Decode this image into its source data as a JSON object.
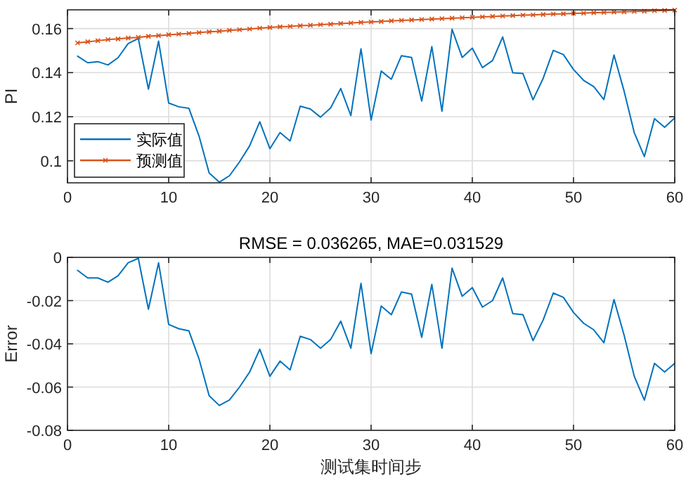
{
  "chart_data": [
    {
      "type": "line",
      "ylabel": "PI",
      "x": [
        1,
        2,
        3,
        4,
        5,
        6,
        7,
        8,
        9,
        10,
        11,
        12,
        13,
        14,
        15,
        16,
        17,
        18,
        19,
        20,
        21,
        22,
        23,
        24,
        25,
        26,
        27,
        28,
        29,
        30,
        31,
        32,
        33,
        34,
        35,
        36,
        37,
        38,
        39,
        40,
        41,
        42,
        43,
        44,
        45,
        46,
        47,
        48,
        49,
        50,
        51,
        52,
        53,
        54,
        55,
        56,
        57,
        58,
        59,
        60
      ],
      "series": [
        {
          "name": "实际值",
          "color": "#0072bd",
          "marker": "none",
          "values": [
            0.1475,
            0.1445,
            0.145,
            0.1435,
            0.1468,
            0.1532,
            0.1555,
            0.1325,
            0.1543,
            0.1262,
            0.1245,
            0.1238,
            0.1112,
            0.0945,
            0.0903,
            0.0932,
            0.0995,
            0.1068,
            0.1177,
            0.1055,
            0.1128,
            0.109,
            0.1248,
            0.1235,
            0.1198,
            0.124,
            0.1328,
            0.1205,
            0.1508,
            0.1185,
            0.1407,
            0.137,
            0.1477,
            0.1469,
            0.1271,
            0.1518,
            0.1225,
            0.1597,
            0.1469,
            0.1511,
            0.1423,
            0.1455,
            0.1562,
            0.1399,
            0.1396,
            0.1277,
            0.1374,
            0.1501,
            0.1482,
            0.1414,
            0.1365,
            0.1337,
            0.1278,
            0.148,
            0.1316,
            0.1128,
            0.1019,
            0.1191,
            0.1152,
            0.1194
          ]
        },
        {
          "name": "预测值",
          "color": "#d95319",
          "marker": "cross",
          "values": [
            0.1535,
            0.154,
            0.1545,
            0.155,
            0.1553,
            0.1557,
            0.156,
            0.1565,
            0.1568,
            0.1572,
            0.1575,
            0.1578,
            0.1582,
            0.1585,
            0.1588,
            0.1592,
            0.1595,
            0.1598,
            0.1602,
            0.1605,
            0.1608,
            0.161,
            0.1613,
            0.1615,
            0.1618,
            0.162,
            0.1623,
            0.1625,
            0.1628,
            0.163,
            0.1632,
            0.1635,
            0.1637,
            0.1639,
            0.1641,
            0.1643,
            0.1645,
            0.1647,
            0.1649,
            0.1651,
            0.1653,
            0.1655,
            0.1657,
            0.1659,
            0.1661,
            0.1662,
            0.1664,
            0.1666,
            0.1667,
            0.1669,
            0.167,
            0.1672,
            0.1673,
            0.1675,
            0.1676,
            0.1678,
            0.1679,
            0.1681,
            0.1682,
            0.1684
          ]
        }
      ],
      "xlim": [
        0,
        60
      ],
      "xticks": [
        0,
        10,
        20,
        30,
        40,
        50,
        60
      ],
      "ylim": [
        0.09,
        0.1685
      ],
      "yticks": [
        0.1,
        0.12,
        0.14,
        0.16
      ],
      "grid": true,
      "legend": "bottom left"
    },
    {
      "type": "line",
      "title": "RMSE = 0.036265, MAE=0.031529",
      "xlabel": "测试集时间步",
      "ylabel": "Error",
      "x": [
        1,
        2,
        3,
        4,
        5,
        6,
        7,
        8,
        9,
        10,
        11,
        12,
        13,
        14,
        15,
        16,
        17,
        18,
        19,
        20,
        21,
        22,
        23,
        24,
        25,
        26,
        27,
        28,
        29,
        30,
        31,
        32,
        33,
        34,
        35,
        36,
        37,
        38,
        39,
        40,
        41,
        42,
        43,
        44,
        45,
        46,
        47,
        48,
        49,
        50,
        51,
        52,
        53,
        54,
        55,
        56,
        57,
        58,
        59,
        60
      ],
      "series": [
        {
          "color": "#0072bd",
          "values": [
            -0.006,
            -0.0095,
            -0.0095,
            -0.0115,
            -0.0085,
            -0.0025,
            -0.0005,
            -0.024,
            -0.0025,
            -0.031,
            -0.033,
            -0.034,
            -0.047,
            -0.064,
            -0.0685,
            -0.066,
            -0.06,
            -0.053,
            -0.0425,
            -0.055,
            -0.048,
            -0.052,
            -0.0365,
            -0.038,
            -0.042,
            -0.038,
            -0.0295,
            -0.042,
            -0.012,
            -0.0445,
            -0.0225,
            -0.0265,
            -0.016,
            -0.017,
            -0.037,
            -0.0125,
            -0.042,
            -0.005,
            -0.018,
            -0.014,
            -0.023,
            -0.02,
            -0.0095,
            -0.026,
            -0.0265,
            -0.0385,
            -0.029,
            -0.0165,
            -0.0185,
            -0.0255,
            -0.0305,
            -0.0335,
            -0.0395,
            -0.0195,
            -0.036,
            -0.055,
            -0.066,
            -0.049,
            -0.053,
            -0.049
          ]
        }
      ],
      "xlim": [
        0,
        60
      ],
      "xticks": [
        0,
        10,
        20,
        30,
        40,
        50,
        60
      ],
      "ylim": [
        -0.08,
        0
      ],
      "yticks": [
        -0.08,
        -0.06,
        -0.04,
        -0.02,
        0
      ],
      "grid": true
    }
  ]
}
